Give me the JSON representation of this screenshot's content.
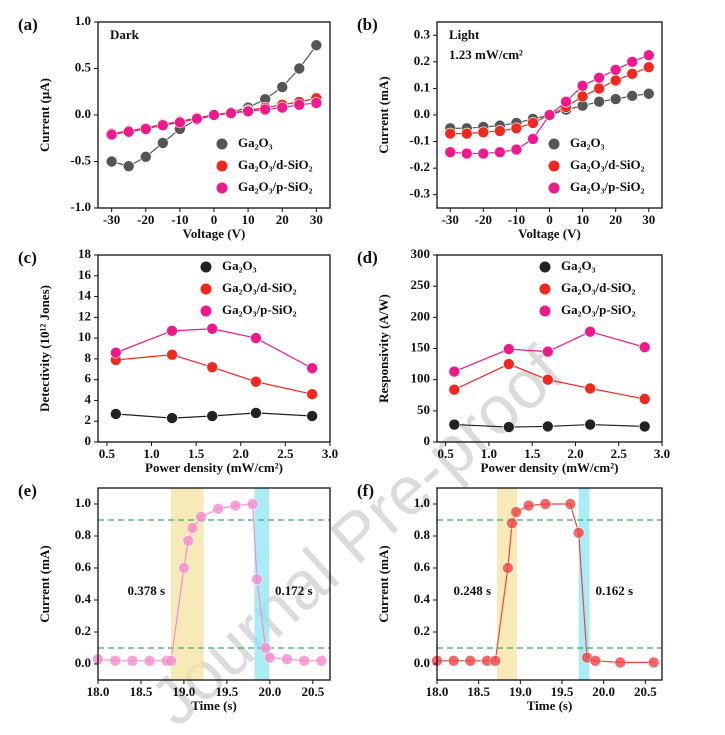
{
  "watermark": "Journal Pre-proof",
  "chart_data": [
    {
      "type": "line",
      "label": "(a)",
      "annotations": [
        "Dark"
      ],
      "xlabel": "Voltage (V)",
      "ylabel": "Current (μA)",
      "x": [
        -30,
        -25,
        -20,
        -15,
        -10,
        -5,
        0,
        5,
        10,
        15,
        20,
        25,
        30
      ],
      "series": [
        {
          "name": "Ga₂O₃",
          "color": "#555555",
          "values": [
            -0.5,
            -0.55,
            -0.45,
            -0.3,
            -0.15,
            -0.05,
            0,
            0.03,
            0.08,
            0.17,
            0.3,
            0.5,
            0.75
          ]
        },
        {
          "name": "Ga₂O₃/d-SiO₂",
          "color": "#f0281e",
          "values": [
            -0.2,
            -0.17,
            -0.14,
            -0.1,
            -0.07,
            -0.03,
            0,
            0.02,
            0.05,
            0.08,
            0.11,
            0.14,
            0.18
          ]
        },
        {
          "name": "Ga₂O₃/p-SiO₂",
          "color": "#ee1a8c",
          "values": [
            -0.21,
            -0.18,
            -0.15,
            -0.11,
            -0.08,
            -0.04,
            0,
            0.02,
            0.04,
            0.06,
            0.08,
            0.11,
            0.13
          ]
        }
      ],
      "xlim": [
        -34,
        34
      ],
      "xticks": [
        -30,
        -20,
        -10,
        0,
        10,
        20,
        30
      ],
      "ylim": [
        -1,
        1
      ],
      "yticks": [
        {
          "value": -1,
          "label": "-1.0"
        },
        -0.5,
        {
          "value": 0,
          "label": "0.0"
        },
        0.5,
        {
          "value": 1,
          "label": "1.0"
        }
      ],
      "legend": "lower right"
    },
    {
      "type": "line",
      "label": "(b)",
      "annotations": [
        "Light",
        "1.23 mW/cm²"
      ],
      "xlabel": "Voltage (V)",
      "ylabel": "Current (mA)",
      "x": [
        -30,
        -25,
        -20,
        -15,
        -10,
        -5,
        0,
        5,
        10,
        15,
        20,
        25,
        30
      ],
      "series": [
        {
          "name": "Ga₂O₃",
          "color": "#555555",
          "values": [
            -0.05,
            -0.05,
            -0.045,
            -0.04,
            -0.03,
            -0.015,
            0,
            0.02,
            0.035,
            0.05,
            0.06,
            0.072,
            0.08
          ]
        },
        {
          "name": "Ga₂O₃/d-SiO₂",
          "color": "#f0281e",
          "values": [
            -0.07,
            -0.07,
            -0.065,
            -0.06,
            -0.05,
            -0.03,
            0,
            0.03,
            0.07,
            0.1,
            0.13,
            0.155,
            0.18
          ]
        },
        {
          "name": "Ga₂O₃/p-SiO₂",
          "color": "#ee1a8c",
          "values": [
            -0.14,
            -0.145,
            -0.145,
            -0.14,
            -0.13,
            -0.09,
            0,
            0.05,
            0.11,
            0.14,
            0.17,
            0.2,
            0.225
          ]
        }
      ],
      "xlim": [
        -34,
        34
      ],
      "xticks": [
        -30,
        -20,
        -10,
        0,
        10,
        20,
        30
      ],
      "ylim": [
        -0.35,
        0.35
      ],
      "yticks": [
        -0.3,
        -0.2,
        -0.1,
        {
          "value": 0,
          "label": "0.0"
        },
        0.1,
        0.2,
        0.3
      ],
      "legend": "lower right"
    },
    {
      "type": "line",
      "label": "(c)",
      "xlabel": "Power density (mW/cm²)",
      "ylabel": "Detectivity (10¹² Jones)",
      "x": [
        0.6,
        1.23,
        1.68,
        2.17,
        2.8
      ],
      "series": [
        {
          "name": "Ga₂O₃",
          "color": "#222222",
          "values": [
            2.7,
            2.3,
            2.5,
            2.8,
            2.5
          ]
        },
        {
          "name": "Ga₂O₃/d-SiO₂",
          "color": "#f0281e",
          "values": [
            7.9,
            8.4,
            7.2,
            5.8,
            4.6
          ]
        },
        {
          "name": "Ga₂O₃/p-SiO₂",
          "color": "#ee1a8c",
          "values": [
            8.6,
            10.7,
            10.9,
            10.0,
            7.1
          ]
        }
      ],
      "xlim": [
        0.4,
        3.0
      ],
      "xticks": [
        0.5,
        {
          "value": 1,
          "label": "1.0"
        },
        1.5,
        {
          "value": 2,
          "label": "2.0"
        },
        2.5,
        {
          "value": 3,
          "label": "3.0"
        }
      ],
      "ylim": [
        0,
        18
      ],
      "yticks": [
        0,
        2,
        4,
        6,
        8,
        10,
        12,
        14,
        16,
        18
      ],
      "legend": "upper right"
    },
    {
      "type": "line",
      "label": "(d)",
      "xlabel": "Power density (mW/cm²)",
      "ylabel": "Responsivity (A/W)",
      "x": [
        0.6,
        1.23,
        1.68,
        2.17,
        2.8
      ],
      "series": [
        {
          "name": "Ga₂O₃",
          "color": "#222222",
          "values": [
            28,
            24,
            25,
            28,
            25
          ]
        },
        {
          "name": "Ga₂O₃/d-SiO₂",
          "color": "#f0281e",
          "values": [
            84,
            125,
            100,
            86,
            69
          ]
        },
        {
          "name": "Ga₂O₃/p-SiO₂",
          "color": "#ee1a8c",
          "values": [
            113,
            149,
            145,
            177,
            152
          ]
        }
      ],
      "xlim": [
        0.4,
        3.0
      ],
      "xticks": [
        0.5,
        {
          "value": 1,
          "label": "1.0"
        },
        1.5,
        {
          "value": 2,
          "label": "2.0"
        },
        2.5,
        {
          "value": 3,
          "label": "3.0"
        }
      ],
      "ylim": [
        0,
        300
      ],
      "yticks": [
        0,
        50,
        100,
        150,
        200,
        250,
        300
      ],
      "legend": "upper right"
    },
    {
      "type": "line",
      "label": "(e)",
      "annotations": [
        "0.378 s",
        "0.172 s"
      ],
      "xlabel": "Time (s)",
      "ylabel": "Current (mA)",
      "x": [
        18.0,
        18.2,
        18.4,
        18.6,
        18.8,
        18.85,
        19.0,
        19.05,
        19.1,
        19.2,
        19.4,
        19.6,
        19.8,
        19.85,
        19.95,
        20.0,
        20.2,
        20.4,
        20.6
      ],
      "series": [
        {
          "name": null,
          "color": "#f78ccd",
          "values": [
            0.03,
            0.02,
            0.02,
            0.02,
            0.02,
            0.02,
            0.6,
            0.77,
            0.85,
            0.92,
            0.97,
            0.99,
            1.0,
            0.53,
            0.1,
            0.04,
            0.03,
            0.02,
            0.02
          ]
        }
      ],
      "bands": [
        {
          "x0": 18.85,
          "x1": 19.23,
          "color": "#f6e3a0"
        },
        {
          "x0": 19.82,
          "x1": 19.99,
          "color": "#8ee6f0"
        }
      ],
      "hlines": [
        0.1,
        0.9
      ],
      "xlim": [
        18.0,
        20.7
      ],
      "xticks": [
        {
          "value": 18,
          "label": "18.0"
        },
        18.5,
        {
          "value": 19,
          "label": "19.0"
        },
        19.5,
        {
          "value": 20,
          "label": "20.0"
        },
        20.5
      ],
      "ylim": [
        -0.1,
        1.1
      ],
      "yticks": [
        {
          "value": 0,
          "label": "0.0"
        },
        0.2,
        0.4,
        0.6,
        0.8,
        {
          "value": 1,
          "label": "1.0"
        }
      ]
    },
    {
      "type": "line",
      "label": "(f)",
      "annotations": [
        "0.248 s",
        "0.162 s"
      ],
      "xlabel": "Time (s)",
      "ylabel": "Current (mA)",
      "x": [
        18.0,
        18.2,
        18.4,
        18.6,
        18.7,
        18.85,
        18.9,
        18.95,
        19.1,
        19.3,
        19.6,
        19.7,
        19.8,
        19.9,
        20.2,
        20.6
      ],
      "series": [
        {
          "name": null,
          "color": "#ee4444",
          "values": [
            0.02,
            0.02,
            0.02,
            0.02,
            0.02,
            0.6,
            0.88,
            0.95,
            0.99,
            1.0,
            1.0,
            0.82,
            0.04,
            0.02,
            0.01,
            0.01
          ]
        }
      ],
      "bands": [
        {
          "x0": 18.72,
          "x1": 18.96,
          "color": "#f6e3a0"
        },
        {
          "x0": 19.7,
          "x1": 19.83,
          "color": "#8ee6f0"
        }
      ],
      "hlines": [
        0.1,
        0.9
      ],
      "xlim": [
        18.0,
        20.7
      ],
      "xticks": [
        {
          "value": 18,
          "label": "18.0"
        },
        18.5,
        {
          "value": 19,
          "label": "19.0"
        },
        19.5,
        {
          "value": 20,
          "label": "20.0"
        },
        20.5
      ],
      "ylim": [
        -0.1,
        1.1
      ],
      "yticks": [
        {
          "value": 0,
          "label": "0.0"
        },
        0.2,
        0.4,
        0.6,
        0.8,
        {
          "value": 1,
          "label": "1.0"
        }
      ]
    }
  ]
}
